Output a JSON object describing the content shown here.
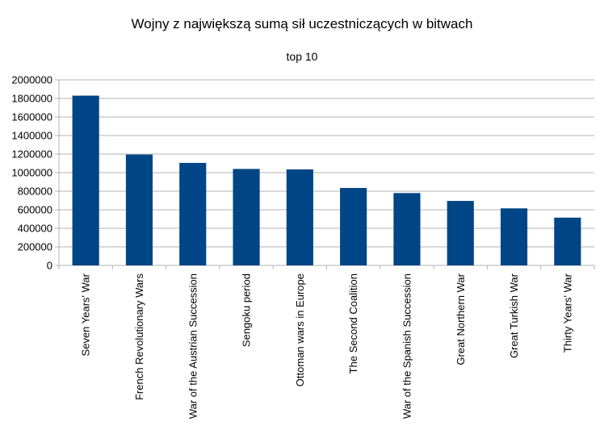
{
  "chart_data": {
    "type": "bar",
    "title": "Wojny z największą sumą sił uczestniczących w bitwach",
    "subtitle": "top 10",
    "xlabel": "",
    "ylabel": "",
    "categories": [
      "Seven Years' War",
      "French Revolutionary Wars",
      "War of the Austrian Succession",
      "Sengoku period",
      "Ottoman wars in Europe",
      "The Second Coalition",
      "War of the Spanish Succession",
      "Great Northern War",
      "Great Turkish War",
      "Thirty Years' War"
    ],
    "values": [
      1830000,
      1195000,
      1105000,
      1040000,
      1035000,
      835000,
      780000,
      695000,
      615000,
      515000
    ],
    "ylim": [
      0,
      2000000
    ],
    "yticks": [
      "0",
      "200000",
      "400000",
      "600000",
      "800000",
      "1000000",
      "1200000",
      "1400000",
      "1600000",
      "1800000",
      "2000000"
    ],
    "grid": true,
    "legend": "none",
    "bar_color": "#004586",
    "grid_color": "#b3b3b3"
  }
}
